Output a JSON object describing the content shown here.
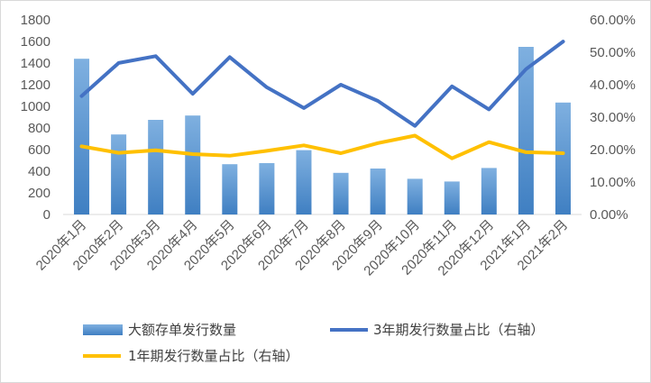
{
  "chart_data": {
    "type": "bar",
    "categories": [
      "2020年1月",
      "2020年2月",
      "2020年3月",
      "2020年4月",
      "2020年5月",
      "2020年6月",
      "2020年7月",
      "2020年8月",
      "2020年9月",
      "2020年10月",
      "2020年11月",
      "2020年12月",
      "2021年1月",
      "2021年2月"
    ],
    "bar_series": {
      "name": "大额存单发行数量",
      "values": [
        1440,
        740,
        875,
        915,
        465,
        475,
        595,
        385,
        425,
        330,
        305,
        430,
        1550,
        1035
      ],
      "color": "#5b9bd5"
    },
    "line_series": [
      {
        "name": "3年期发行数量占比（右轴）",
        "values": [
          36.5,
          46.7,
          48.8,
          37.2,
          48.5,
          39.2,
          32.8,
          40.0,
          35.0,
          27.3,
          39.5,
          32.4,
          44.8,
          53.3
        ],
        "color": "#4472c4"
      },
      {
        "name": "1年期发行数量占比（右轴）",
        "values": [
          21.0,
          19.0,
          19.8,
          18.6,
          18.1,
          19.6,
          21.3,
          18.9,
          22.0,
          24.3,
          17.3,
          22.3,
          19.2,
          18.9
        ],
        "color": "#ffc000"
      }
    ],
    "left_axis": {
      "ylim": [
        0,
        1800
      ],
      "ticks": [
        "0",
        "200",
        "400",
        "600",
        "800",
        "1000",
        "1200",
        "1400",
        "1600",
        "1800"
      ]
    },
    "right_axis": {
      "ylim": [
        0,
        60
      ],
      "unit": "%",
      "ticks": [
        "0.00%",
        "10.00%",
        "20.00%",
        "30.00%",
        "40.00%",
        "50.00%",
        "60.00%"
      ]
    },
    "grid": false,
    "legend_position": "bottom",
    "legend": [
      {
        "label": "大额存单发行数量",
        "kind": "bar"
      },
      {
        "label": "3年期发行数量占比（右轴）",
        "kind": "line"
      },
      {
        "label": "1年期发行数量占比（右轴）",
        "kind": "line"
      }
    ]
  }
}
